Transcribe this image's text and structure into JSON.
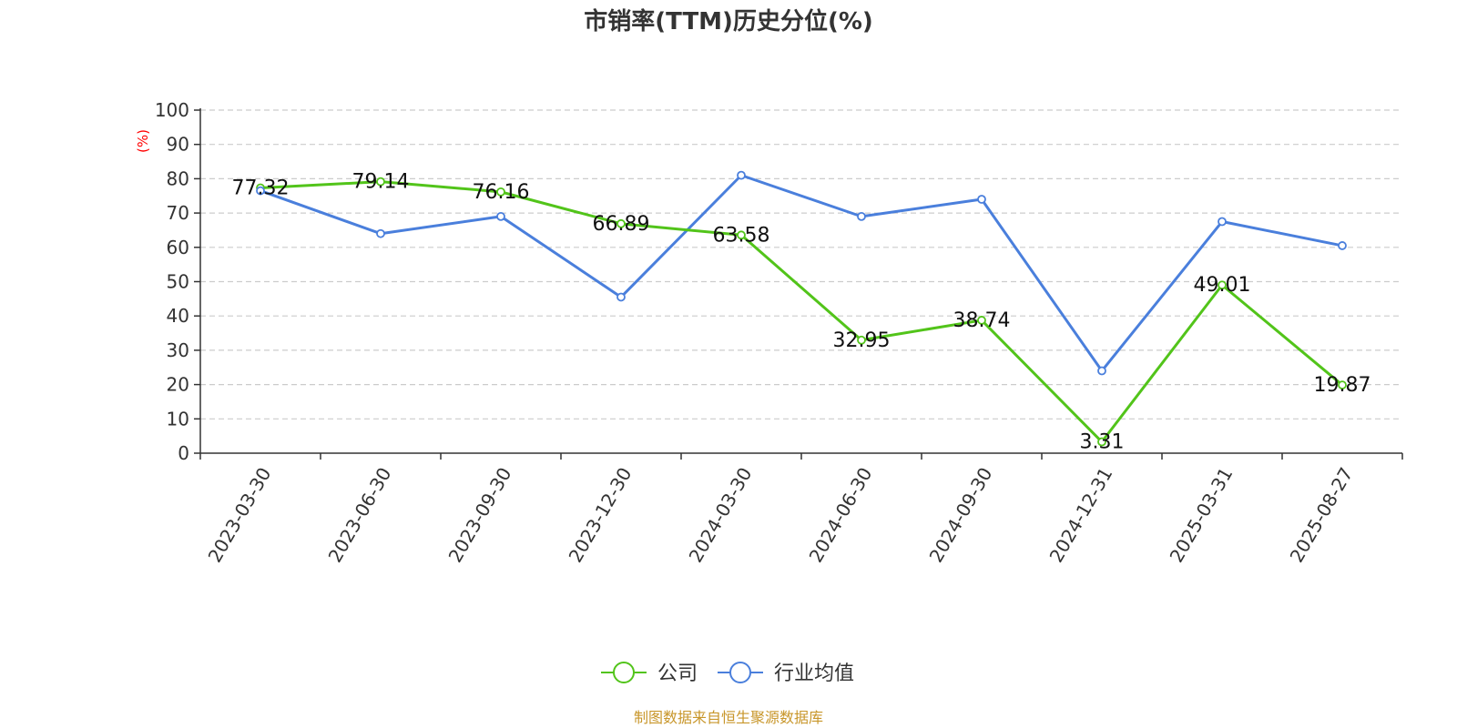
{
  "chart_data": {
    "type": "line",
    "title": "市销率(TTM)历史分位(%)",
    "ylabel": "(%)",
    "ylim": [
      0,
      100
    ],
    "yticks": [
      0,
      10,
      20,
      30,
      40,
      50,
      60,
      70,
      80,
      90,
      100
    ],
    "grid": true,
    "legend_position": "bottom-center",
    "categories": [
      "2023-03-30",
      "2023-06-30",
      "2023-09-30",
      "2023-12-30",
      "2024-03-30",
      "2024-06-30",
      "2024-09-30",
      "2024-12-31",
      "2025-03-31",
      "2025-08-27"
    ],
    "series": [
      {
        "name": "公司",
        "color": "#52c41a",
        "show_labels": true,
        "values": [
          77.32,
          79.14,
          76.16,
          66.89,
          63.58,
          32.95,
          38.74,
          3.31,
          49.01,
          19.87
        ]
      },
      {
        "name": "行业均值",
        "color": "#4a7fdc",
        "show_labels": false,
        "values": [
          76.5,
          64.0,
          69.0,
          45.5,
          81.0,
          69.0,
          74.0,
          24.0,
          67.5,
          60.5
        ]
      }
    ]
  },
  "source": "制图数据来自恒生聚源数据库"
}
